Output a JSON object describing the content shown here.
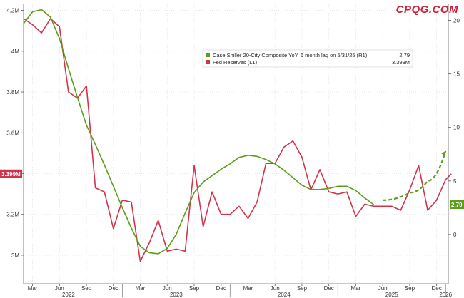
{
  "brand": "CPQG.COM",
  "chart_data": {
    "type": "line",
    "x_ticks": [
      "Mar",
      "Jun",
      "Sep",
      "Dec",
      "Mar",
      "Jun",
      "Sep",
      "Dec",
      "Mar",
      "Jun",
      "Sep",
      "Dec",
      "Mar",
      "Jun",
      "Sep",
      "Dec"
    ],
    "x_years": [
      {
        "label": "2022",
        "month": "2022-07"
      },
      {
        "label": "2023",
        "month": "2023-07"
      },
      {
        "label": "2024",
        "month": "2024-07"
      },
      {
        "label": "2025",
        "month": "2025-07"
      },
      {
        "label": "2026",
        "month": "2026-01"
      }
    ],
    "x_range": [
      "2022-02",
      "2026-01"
    ],
    "y_left": {
      "ticks": [
        "4.2M",
        "4M",
        "3.8M",
        "3.6M",
        "3.4M",
        "3.2M",
        "3M"
      ],
      "range": [
        2.86,
        4.23
      ],
      "unit": "M"
    },
    "y_right": {
      "ticks": [
        "20",
        "15",
        "10",
        "5",
        "0"
      ],
      "range": [
        -4.6,
        21.5
      ]
    },
    "legend": {
      "placement": "top-center",
      "items": [
        {
          "label": "Case Shiller 20-City Composite YoY, 6 month lag on 5/31/25 (R1)",
          "value": "2.79",
          "color": "#5a9e1a"
        },
        {
          "label": "Fed Reserves (L1)",
          "value": "3.399M",
          "color": "#d2334c"
        }
      ]
    },
    "last_value_tags": {
      "left": "3.399M",
      "right": "2.79"
    },
    "series": [
      {
        "axis": "left",
        "color": "#d2334c",
        "points": [
          [
            "2022-02-01",
            4.16
          ],
          [
            "2022-03-01",
            4.13
          ],
          [
            "2022-04-01",
            4.09
          ],
          [
            "2022-05-01",
            4.16
          ],
          [
            "2022-06-01",
            4.12
          ],
          [
            "2022-07-01",
            3.8
          ],
          [
            "2022-08-01",
            3.77
          ],
          [
            "2022-09-01",
            3.83
          ],
          [
            "2022-10-01",
            3.33
          ],
          [
            "2022-11-01",
            3.31
          ],
          [
            "2022-12-01",
            3.13
          ],
          [
            "2023-01-01",
            3.27
          ],
          [
            "2023-02-01",
            3.26
          ],
          [
            "2023-03-01",
            2.97
          ],
          [
            "2023-04-01",
            3.06
          ],
          [
            "2023-05-01",
            3.17
          ],
          [
            "2023-06-01",
            3.02
          ],
          [
            "2023-07-01",
            3.03
          ],
          [
            "2023-08-01",
            3.02
          ],
          [
            "2023-09-01",
            3.44
          ],
          [
            "2023-10-01",
            3.14
          ],
          [
            "2023-11-01",
            3.31
          ],
          [
            "2023-12-01",
            3.2
          ],
          [
            "2024-01-01",
            3.2
          ],
          [
            "2024-02-01",
            3.24
          ],
          [
            "2024-03-01",
            3.18
          ],
          [
            "2024-04-01",
            3.26
          ],
          [
            "2024-05-01",
            3.45
          ],
          [
            "2024-06-01",
            3.45
          ],
          [
            "2024-07-01",
            3.53
          ],
          [
            "2024-08-01",
            3.56
          ],
          [
            "2024-09-01",
            3.48
          ],
          [
            "2024-10-01",
            3.32
          ],
          [
            "2024-11-01",
            3.42
          ],
          [
            "2024-12-01",
            3.31
          ],
          [
            "2025-01-01",
            3.3
          ],
          [
            "2025-02-01",
            3.31
          ],
          [
            "2025-03-01",
            3.19
          ],
          [
            "2025-04-01",
            3.25
          ],
          [
            "2025-05-01",
            3.24
          ],
          [
            "2025-06-01",
            3.24
          ],
          [
            "2025-07-01",
            3.24
          ],
          [
            "2025-08-01",
            3.22
          ],
          [
            "2025-09-01",
            3.32
          ],
          [
            "2025-10-01",
            3.44
          ],
          [
            "2025-11-01",
            3.22
          ],
          [
            "2025-12-01",
            3.27
          ],
          [
            "2026-01-01",
            3.37
          ],
          [
            "2026-01-20",
            3.399
          ]
        ]
      },
      {
        "axis": "right",
        "color": "#5a9e1a",
        "points": [
          [
            "2022-02-01",
            19.7
          ],
          [
            "2022-03-01",
            20.8
          ],
          [
            "2022-04-01",
            21.0
          ],
          [
            "2022-05-01",
            20.3
          ],
          [
            "2022-06-01",
            18.3
          ],
          [
            "2022-07-01",
            15.5
          ],
          [
            "2022-08-01",
            12.8
          ],
          [
            "2022-09-01",
            10.2
          ],
          [
            "2022-10-01",
            8.4
          ],
          [
            "2022-11-01",
            6.5
          ],
          [
            "2022-12-01",
            4.5
          ],
          [
            "2023-01-01",
            2.5
          ],
          [
            "2023-02-01",
            0.6
          ],
          [
            "2023-03-01",
            -1.1
          ],
          [
            "2023-04-01",
            -1.7
          ],
          [
            "2023-05-01",
            -1.8
          ],
          [
            "2023-06-01",
            -1.3
          ],
          [
            "2023-07-01",
            0.0
          ],
          [
            "2023-08-01",
            2.0
          ],
          [
            "2023-09-01",
            3.9
          ],
          [
            "2023-10-01",
            4.9
          ],
          [
            "2023-11-01",
            5.5
          ],
          [
            "2023-12-01",
            6.1
          ],
          [
            "2024-01-01",
            6.6
          ],
          [
            "2024-02-01",
            7.2
          ],
          [
            "2024-03-01",
            7.4
          ],
          [
            "2024-04-01",
            7.3
          ],
          [
            "2024-05-01",
            7.0
          ],
          [
            "2024-06-01",
            6.6
          ],
          [
            "2024-07-01",
            6.0
          ],
          [
            "2024-08-01",
            5.3
          ],
          [
            "2024-09-01",
            4.6
          ],
          [
            "2024-10-01",
            4.2
          ],
          [
            "2024-11-01",
            4.2
          ],
          [
            "2024-12-01",
            4.3
          ],
          [
            "2025-01-01",
            4.5
          ],
          [
            "2025-02-01",
            4.5
          ],
          [
            "2025-03-01",
            4.1
          ],
          [
            "2025-04-01",
            3.4
          ],
          [
            "2025-05-01",
            2.79
          ]
        ]
      }
    ],
    "projection": {
      "color": "#5a9e1a",
      "style": "dashed-arrow",
      "points": [
        [
          "2025-06-01",
          3.2
        ],
        [
          "2025-09-01",
          3.9
        ],
        [
          "2025-11-01",
          5.0
        ],
        [
          "2026-01-01",
          7.8
        ]
      ]
    }
  }
}
